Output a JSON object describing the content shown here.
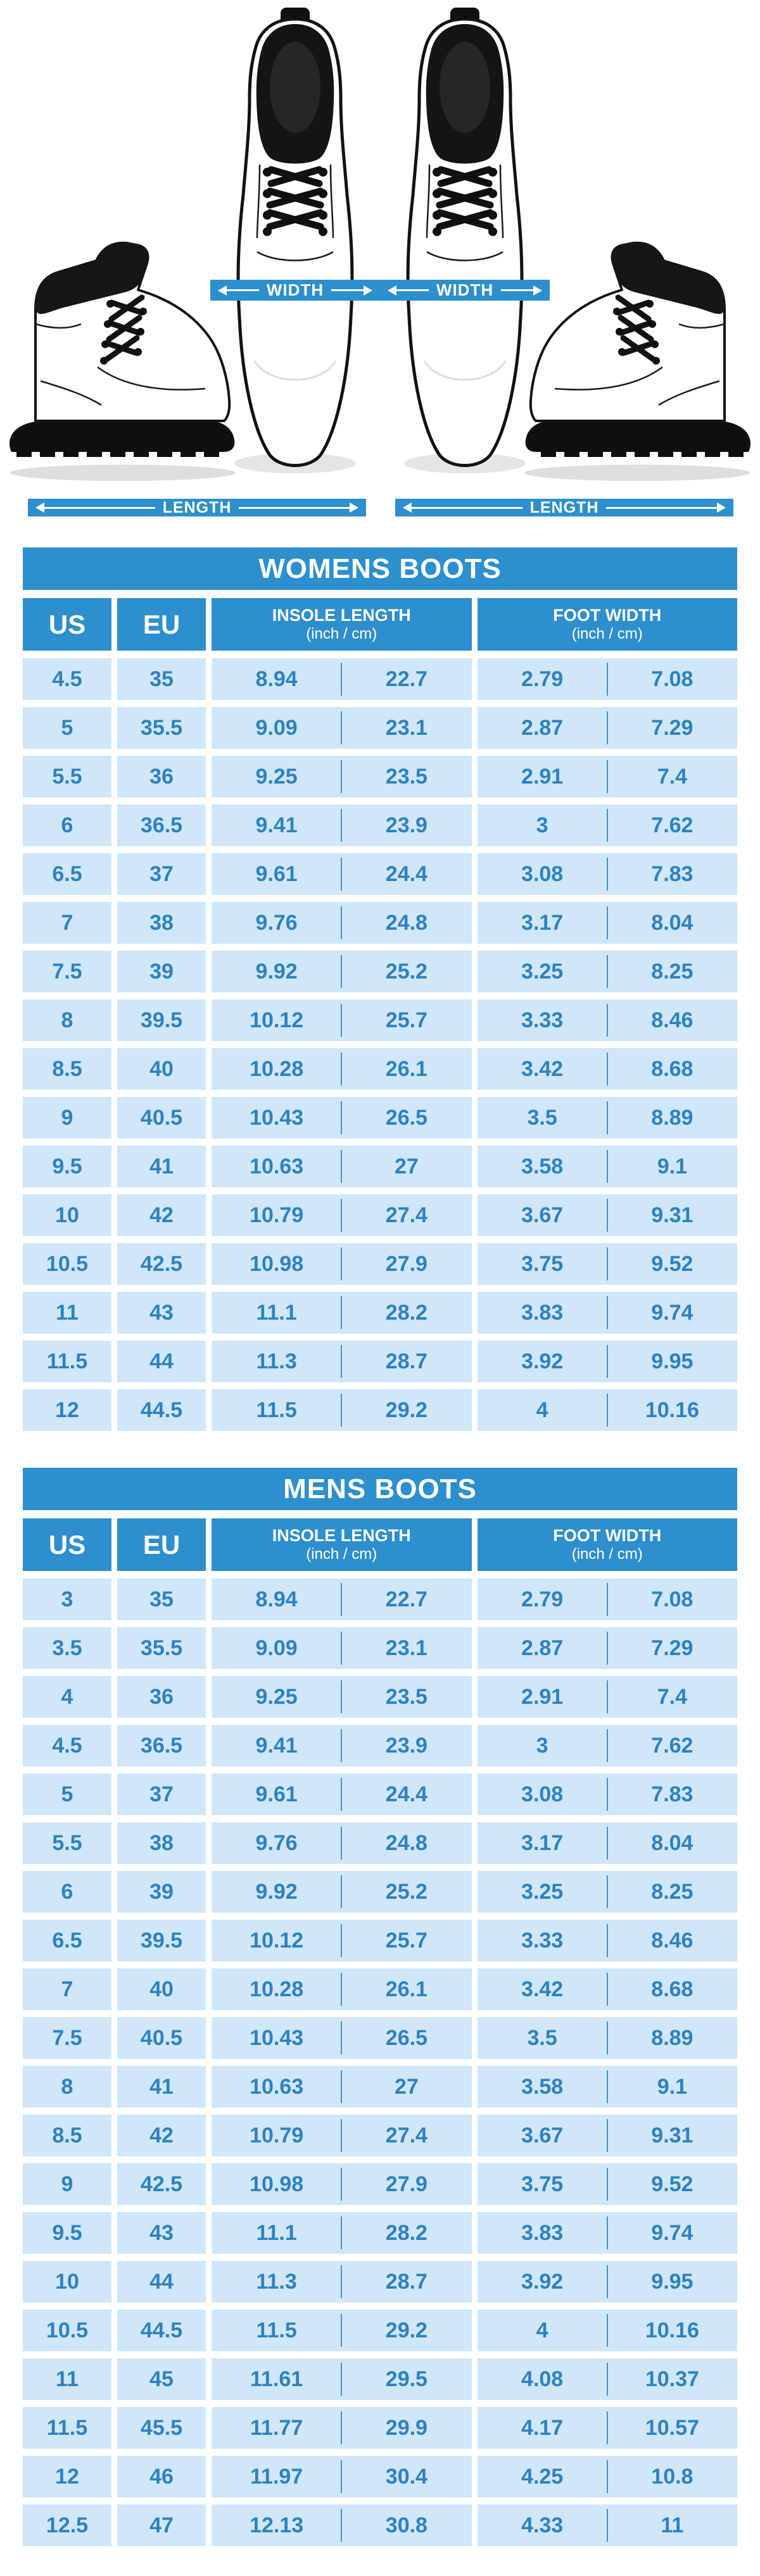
{
  "colors": {
    "accent": "#2d8fcd",
    "cell_bg": "#cfe7f8",
    "cell_text": "#2e81c2",
    "boot_black": "#141414",
    "page_bg": "#ffffff"
  },
  "diagram": {
    "width_label": "WIDTH",
    "length_label": "LENGTH"
  },
  "chart_data": [
    {
      "type": "table",
      "title": "WOMENS BOOTS",
      "col_us": "US",
      "col_eu": "EU",
      "col_insole_line1": "INSOLE LENGTH",
      "col_insole_line2": "(inch / cm)",
      "col_foot_line1": "FOOT WIDTH",
      "col_foot_line2": "(inch / cm)",
      "columns": [
        "US",
        "EU",
        "INSOLE LENGTH (inch / cm)",
        "FOOT WIDTH (inch / cm)"
      ],
      "rows": [
        [
          "4.5",
          "35",
          "8.94",
          "22.7",
          "2.79",
          "7.08"
        ],
        [
          "5",
          "35.5",
          "9.09",
          "23.1",
          "2.87",
          "7.29"
        ],
        [
          "5.5",
          "36",
          "9.25",
          "23.5",
          "2.91",
          "7.4"
        ],
        [
          "6",
          "36.5",
          "9.41",
          "23.9",
          "3",
          "7.62"
        ],
        [
          "6.5",
          "37",
          "9.61",
          "24.4",
          "3.08",
          "7.83"
        ],
        [
          "7",
          "38",
          "9.76",
          "24.8",
          "3.17",
          "8.04"
        ],
        [
          "7.5",
          "39",
          "9.92",
          "25.2",
          "3.25",
          "8.25"
        ],
        [
          "8",
          "39.5",
          "10.12",
          "25.7",
          "3.33",
          "8.46"
        ],
        [
          "8.5",
          "40",
          "10.28",
          "26.1",
          "3.42",
          "8.68"
        ],
        [
          "9",
          "40.5",
          "10.43",
          "26.5",
          "3.5",
          "8.89"
        ],
        [
          "9.5",
          "41",
          "10.63",
          "27",
          "3.58",
          "9.1"
        ],
        [
          "10",
          "42",
          "10.79",
          "27.4",
          "3.67",
          "9.31"
        ],
        [
          "10.5",
          "42.5",
          "10.98",
          "27.9",
          "3.75",
          "9.52"
        ],
        [
          "11",
          "43",
          "11.1",
          "28.2",
          "3.83",
          "9.74"
        ],
        [
          "11.5",
          "44",
          "11.3",
          "28.7",
          "3.92",
          "9.95"
        ],
        [
          "12",
          "44.5",
          "11.5",
          "29.2",
          "4",
          "10.16"
        ]
      ]
    },
    {
      "type": "table",
      "title": "MENS BOOTS",
      "col_us": "US",
      "col_eu": "EU",
      "col_insole_line1": "INSOLE LENGTH",
      "col_insole_line2": "(inch / cm)",
      "col_foot_line1": "FOOT WIDTH",
      "col_foot_line2": "(inch / cm)",
      "columns": [
        "US",
        "EU",
        "INSOLE LENGTH (inch / cm)",
        "FOOT WIDTH (inch / cm)"
      ],
      "rows": [
        [
          "3",
          "35",
          "8.94",
          "22.7",
          "2.79",
          "7.08"
        ],
        [
          "3.5",
          "35.5",
          "9.09",
          "23.1",
          "2.87",
          "7.29"
        ],
        [
          "4",
          "36",
          "9.25",
          "23.5",
          "2.91",
          "7.4"
        ],
        [
          "4.5",
          "36.5",
          "9.41",
          "23.9",
          "3",
          "7.62"
        ],
        [
          "5",
          "37",
          "9.61",
          "24.4",
          "3.08",
          "7.83"
        ],
        [
          "5.5",
          "38",
          "9.76",
          "24.8",
          "3.17",
          "8.04"
        ],
        [
          "6",
          "39",
          "9.92",
          "25.2",
          "3.25",
          "8.25"
        ],
        [
          "6.5",
          "39.5",
          "10.12",
          "25.7",
          "3.33",
          "8.46"
        ],
        [
          "7",
          "40",
          "10.28",
          "26.1",
          "3.42",
          "8.68"
        ],
        [
          "7.5",
          "40.5",
          "10.43",
          "26.5",
          "3.5",
          "8.89"
        ],
        [
          "8",
          "41",
          "10.63",
          "27",
          "3.58",
          "9.1"
        ],
        [
          "8.5",
          "42",
          "10.79",
          "27.4",
          "3.67",
          "9.31"
        ],
        [
          "9",
          "42.5",
          "10.98",
          "27.9",
          "3.75",
          "9.52"
        ],
        [
          "9.5",
          "43",
          "11.1",
          "28.2",
          "3.83",
          "9.74"
        ],
        [
          "10",
          "44",
          "11.3",
          "28.7",
          "3.92",
          "9.95"
        ],
        [
          "10.5",
          "44.5",
          "11.5",
          "29.2",
          "4",
          "10.16"
        ],
        [
          "11",
          "45",
          "11.61",
          "29.5",
          "4.08",
          "10.37"
        ],
        [
          "11.5",
          "45.5",
          "11.77",
          "29.9",
          "4.17",
          "10.57"
        ],
        [
          "12",
          "46",
          "11.97",
          "30.4",
          "4.25",
          "10.8"
        ],
        [
          "12.5",
          "47",
          "12.13",
          "30.8",
          "4.33",
          "11"
        ]
      ]
    }
  ]
}
